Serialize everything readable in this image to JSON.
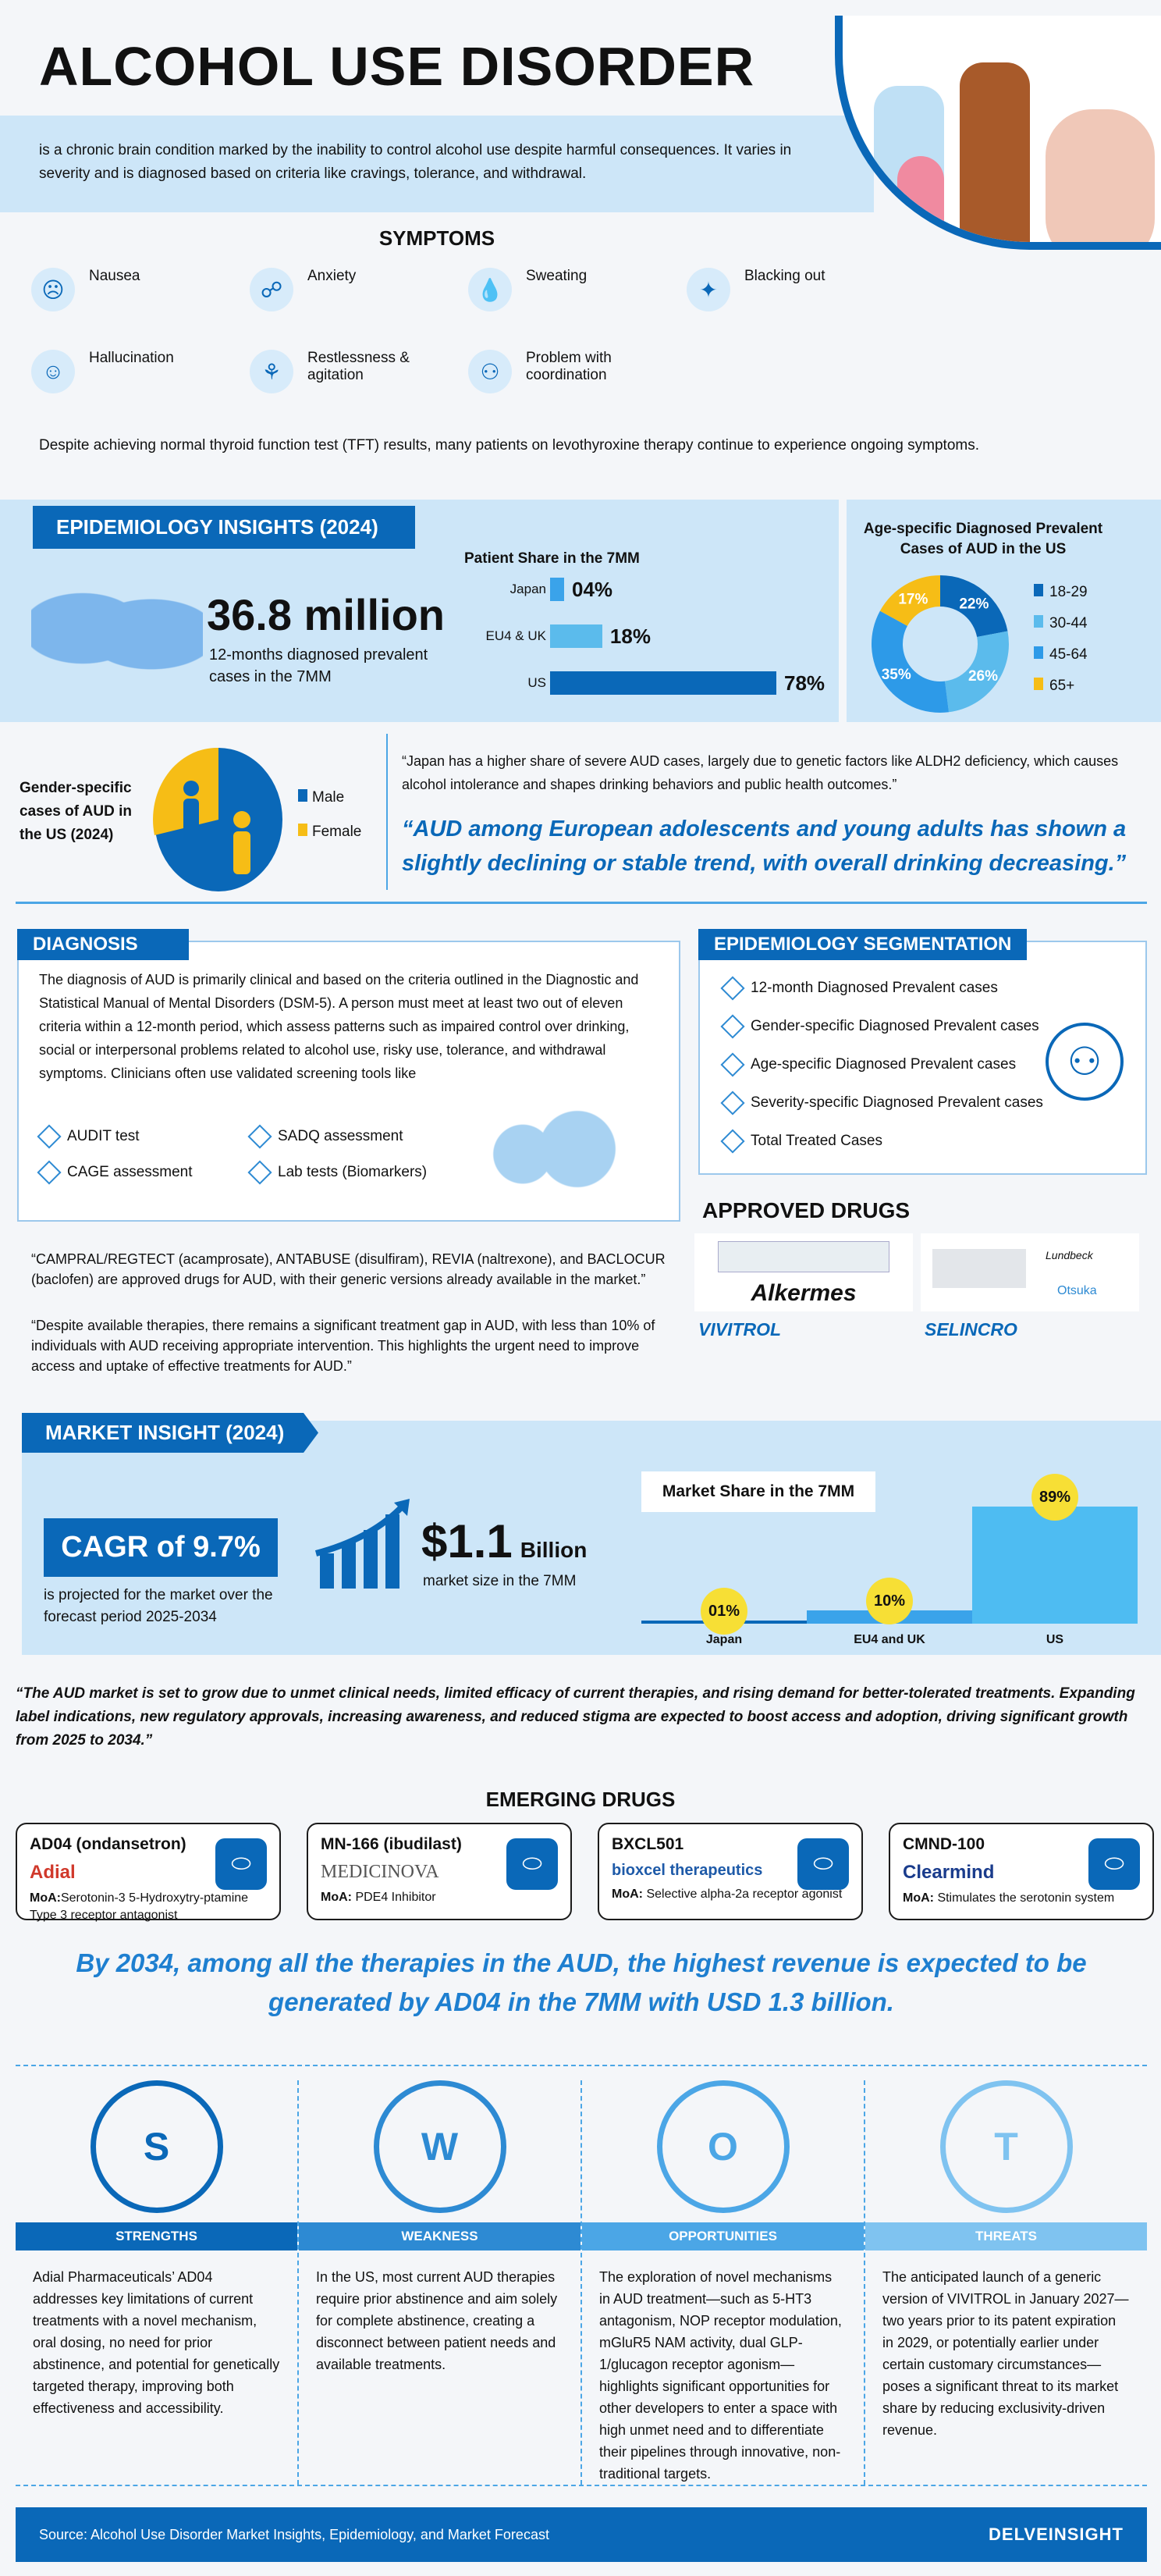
{
  "title": "ALCOHOL USE DISORDER",
  "intro": "is a chronic brain condition marked by the inability to control alcohol use despite harmful consequences. It varies in severity and is diagnosed based on criteria like cravings, tolerance, and withdrawal.",
  "symptoms": {
    "heading": "SYMPTOMS",
    "items": [
      {
        "label": "Nausea",
        "icon": "nausea-icon"
      },
      {
        "label": "Anxiety",
        "icon": "anxiety-icon"
      },
      {
        "label": "Sweating",
        "icon": "sweat-drops-icon"
      },
      {
        "label": "Blacking out",
        "icon": "blackout-icon"
      },
      {
        "label": "Hallucination",
        "icon": "hallucination-icon"
      },
      {
        "label": "Restlessness & agitation",
        "icon": "restlessness-icon"
      },
      {
        "label": "Problem with coordination",
        "icon": "coordination-icon"
      }
    ],
    "note": "Despite achieving normal thyroid function test (TFT) results, many patients on levothyroxine therapy continue to experience ongoing symptoms."
  },
  "epi": {
    "heading": "EPIDEMIOLOGY INSIGHTS (2024)",
    "big_number": "36.8 million",
    "big_caption": "12-months diagnosed prevalent cases in the 7MM",
    "patient_share": {
      "title": "Patient Share in the 7MM",
      "type": "bar",
      "categories": [
        "Japan",
        "EU4 & UK",
        "US"
      ],
      "values": [
        4,
        18,
        78
      ],
      "labels": [
        "04%",
        "18%",
        "78%"
      ],
      "colors": [
        "#3aa3ea",
        "#5bbbec",
        "#0a68b8"
      ]
    },
    "age": {
      "title": "Age-specific Diagnosed Prevalent Cases of AUD in the US",
      "type": "pie",
      "categories": [
        "18-29",
        "30-44",
        "45-64",
        "65+"
      ],
      "values": [
        22,
        26,
        35,
        17
      ],
      "labels": [
        "22%",
        "26%",
        "35%",
        "17%"
      ],
      "colors": [
        "#0a68b8",
        "#5bbbec",
        "#2d9ae8",
        "#f6bd16"
      ]
    },
    "gender": {
      "title": "Gender-specific cases of AUD in the US (2024)",
      "type": "pie",
      "categories": [
        "Male",
        "Female"
      ],
      "colors": [
        "#0a68b8",
        "#f6bd16"
      ]
    },
    "quote1": "“Japan has a higher share of severe AUD cases, largely due to genetic factors like ALDH2 deficiency, which causes alcohol intolerance and shapes drinking behaviors and public health outcomes.”",
    "quote2": "“AUD among European adolescents and young adults has shown a slightly declining or stable trend, with overall drinking decreasing.”"
  },
  "diagnosis": {
    "heading": "DIAGNOSIS",
    "text": "The diagnosis of AUD is primarily clinical and based on the criteria outlined in the Diagnostic and Statistical Manual of Mental Disorders (DSM-5). A person must meet at least two out of eleven criteria within a 12-month period, which assess patterns such as impaired control over drinking, social or interpersonal problems related to alcohol use, risky use, tolerance, and withdrawal symptoms. Clinicians often use validated screening tools like",
    "tools": [
      "AUDIT test",
      "SADQ assessment",
      "CAGE assessment",
      "Lab tests (Biomarkers)"
    ]
  },
  "segmentation": {
    "heading": "EPIDEMIOLOGY SEGMENTATION",
    "items": [
      "12-month Diagnosed Prevalent cases",
      "Gender-specific Diagnosed Prevalent cases",
      "Age-specific Diagnosed Prevalent cases",
      "Severity-specific Diagnosed Prevalent cases",
      "Total Treated Cases"
    ]
  },
  "approved": {
    "heading": "APPROVED DRUGS",
    "drugs": [
      {
        "name": "VIVITROL",
        "company": "Alkermes"
      },
      {
        "name": "SELINCRO",
        "company": "Lundbeck",
        "company2": "Otsuka"
      }
    ],
    "quote1": "“CAMPRAL/REGTECT (acamprosate), ANTABUSE (disulfiram), REVIA (naltrexone), and BACLOCUR (baclofen) are approved drugs for AUD, with their generic versions already available in the market.”",
    "quote2": "“Despite available therapies, there remains a significant treatment gap in AUD, with less than 10% of individuals with AUD receiving appropriate intervention. This highlights the urgent need to improve access and uptake of effective treatments for AUD.”"
  },
  "market": {
    "heading": "MARKET INSIGHT (2024)",
    "cagr": "CAGR of 9.7%",
    "cagr_caption": "is projected for the market over the forecast period 2025-2034",
    "size": "$1.1",
    "size_unit": "Billion",
    "size_caption": "market size in the 7MM",
    "share": {
      "title": "Market Share in the 7MM",
      "type": "bar",
      "categories": [
        "Japan",
        "EU4 and UK",
        "US"
      ],
      "values": [
        1,
        10,
        89
      ],
      "labels": [
        "01%",
        "10%",
        "89%"
      ]
    },
    "quote": "“The AUD market is set to grow due to unmet clinical needs, limited efficacy of current therapies, and rising demand for better-tolerated treatments. Expanding label indications, new regulatory approvals, increasing awareness, and reduced stigma are expected to boost access and adoption, driving significant growth from 2025 to 2034.”"
  },
  "emerging": {
    "heading": "EMERGING DRUGS",
    "drugs": [
      {
        "name": "AD04 (ondansetron)",
        "company": "Adial",
        "moa_label": "MoA:",
        "moa": "Serotonin-3 5-Hydroxytry-ptamine Type 3 receptor antagonist"
      },
      {
        "name": "MN-166 (ibudilast)",
        "company": "MEDICINOVA",
        "moa_label": "MoA:",
        "moa": "PDE4 Inhibitor"
      },
      {
        "name": "BXCL501",
        "company": "bioxcel therapeutics",
        "moa_label": "MoA:",
        "moa": "Selective alpha-2a receptor agonist"
      },
      {
        "name": "CMND-100",
        "company": "Clearmind",
        "moa_label": "MoA:",
        "moa": "Stimulates the serotonin system"
      }
    ],
    "conclusion": "By 2034, among all the therapies in the AUD, the highest revenue is expected to be generated by AD04 in the 7MM with USD 1.3 billion."
  },
  "swot": [
    {
      "letter": "S",
      "title": "STRENGTHS",
      "color": "#0a68b8",
      "text": "Adial Pharmaceuticals’ AD04 addresses key limitations of current treatments with a novel mechanism, oral dosing, no need for prior abstinence, and potential for genetically targeted therapy, improving both effectiveness and accessibility."
    },
    {
      "letter": "W",
      "title": "WEAKNESS",
      "color": "#2d8ad3",
      "text": "In the US, most current AUD therapies require prior abstinence and aim solely for complete abstinence, creating a disconnect between patient needs and available treatments."
    },
    {
      "letter": "O",
      "title": "OPPORTUNITIES",
      "color": "#4ba6e6",
      "text": "The exploration of novel mechanisms in AUD treatment—such as 5-HT3 antagonism, NOP receptor modulation, mGluR5 NAM activity, dual GLP-1/glucagon receptor agonism—highlights significant opportunities for other developers to enter a space with high unmet need and to differentiate their pipelines through innovative, non-traditional targets."
    },
    {
      "letter": "T",
      "title": "THREATS",
      "color": "#7fc3f0",
      "text": "The anticipated launch of a generic version of VIVITROL in January 2027—two years prior to its patent expiration in 2029, or potentially earlier under certain customary circumstances—poses a significant threat to its market share by reducing exclusivity-driven revenue."
    }
  ],
  "footer": {
    "source": "Source: Alcohol Use Disorder Market Insights, Epidemiology, and Market Forecast",
    "brand": "DELVEINSIGHT"
  }
}
